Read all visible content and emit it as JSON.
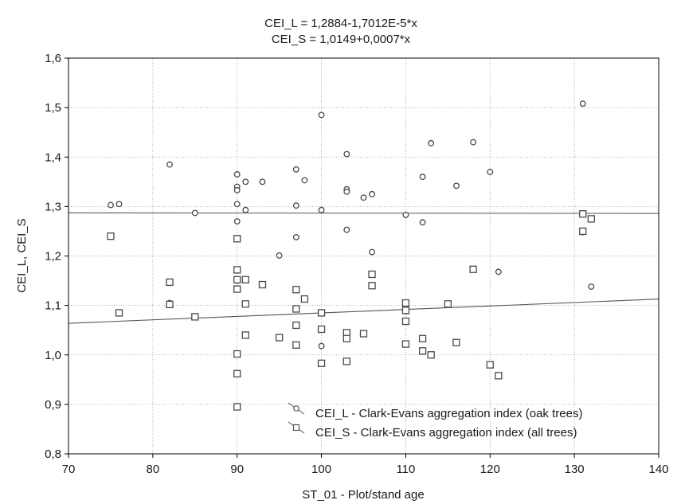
{
  "chart_data": {
    "type": "scatter",
    "title_lines": [
      "CEI_L = 1,2884-1,7012E-5*x",
      "CEI_S = 1,0149+0,0007*x"
    ],
    "xlabel": "ST_01 - Plot/stand age",
    "ylabel": "CEI_L, CEI_S",
    "xlim": [
      70,
      140
    ],
    "ylim": [
      0.8,
      1.6
    ],
    "x_ticks": [
      70,
      80,
      90,
      100,
      110,
      120,
      130,
      140
    ],
    "x_tick_labels": [
      "70",
      "80",
      "90",
      "100",
      "110",
      "120",
      "130",
      "140"
    ],
    "y_ticks": [
      0.8,
      0.9,
      1.0,
      1.1,
      1.2,
      1.3,
      1.4,
      1.5,
      1.6
    ],
    "y_tick_labels": [
      "0,8",
      "0,9",
      "1,0",
      "1,1",
      "1,2",
      "1,3",
      "1,4",
      "1,5",
      "1,6"
    ],
    "grid": true,
    "legend_position": "bottom-center",
    "series": [
      {
        "name": "CEI_L - Clark-Evans aggregation index (oak trees)",
        "marker": "circle",
        "fit": {
          "intercept": 1.2884,
          "slope": -1.7012e-05
        },
        "points": [
          [
            75,
            1.303
          ],
          [
            76,
            1.305
          ],
          [
            82,
            1.385
          ],
          [
            82,
            1.105
          ],
          [
            85,
            1.287
          ],
          [
            90,
            1.365
          ],
          [
            90,
            1.34
          ],
          [
            90,
            1.333
          ],
          [
            90,
            1.305
          ],
          [
            90,
            1.27
          ],
          [
            90,
            1.15
          ],
          [
            91,
            1.35
          ],
          [
            91,
            1.293
          ],
          [
            93,
            1.35
          ],
          [
            95,
            1.201
          ],
          [
            97,
            1.375
          ],
          [
            97,
            1.302
          ],
          [
            97,
            1.238
          ],
          [
            98,
            1.353
          ],
          [
            100,
            1.485
          ],
          [
            100,
            1.293
          ],
          [
            100,
            1.018
          ],
          [
            103,
            1.406
          ],
          [
            103,
            1.335
          ],
          [
            103,
            1.33
          ],
          [
            103,
            1.253
          ],
          [
            105,
            1.318
          ],
          [
            106,
            1.325
          ],
          [
            106,
            1.208
          ],
          [
            110,
            1.283
          ],
          [
            110,
            1.088
          ],
          [
            112,
            1.36
          ],
          [
            112,
            1.268
          ],
          [
            113,
            1.428
          ],
          [
            116,
            1.342
          ],
          [
            118,
            1.43
          ],
          [
            120,
            1.37
          ],
          [
            121,
            1.168
          ],
          [
            131,
            1.508
          ],
          [
            131,
            1.248
          ],
          [
            132,
            1.138
          ]
        ]
      },
      {
        "name": "CEI_S - Clark-Evans aggregation index (all trees)",
        "marker": "square",
        "fit": {
          "intercept": 1.0149,
          "slope": 0.0007
        },
        "points": [
          [
            75,
            1.24
          ],
          [
            76,
            1.085
          ],
          [
            82,
            1.147
          ],
          [
            82,
            1.102
          ],
          [
            85,
            1.077
          ],
          [
            90,
            1.235
          ],
          [
            90,
            1.172
          ],
          [
            90,
            1.152
          ],
          [
            90,
            1.133
          ],
          [
            90,
            1.002
          ],
          [
            90,
            0.962
          ],
          [
            90,
            0.895
          ],
          [
            91,
            1.152
          ],
          [
            91,
            1.103
          ],
          [
            91,
            1.04
          ],
          [
            93,
            1.142
          ],
          [
            95,
            1.035
          ],
          [
            97,
            1.132
          ],
          [
            97,
            1.093
          ],
          [
            97,
            1.06
          ],
          [
            97,
            1.02
          ],
          [
            98,
            1.113
          ],
          [
            100,
            1.085
          ],
          [
            100,
            1.052
          ],
          [
            100,
            0.983
          ],
          [
            103,
            1.045
          ],
          [
            103,
            1.033
          ],
          [
            103,
            0.987
          ],
          [
            105,
            1.043
          ],
          [
            106,
            1.163
          ],
          [
            106,
            1.14
          ],
          [
            110,
            1.105
          ],
          [
            110,
            1.09
          ],
          [
            110,
            1.068
          ],
          [
            110,
            1.022
          ],
          [
            112,
            1.033
          ],
          [
            112,
            1.008
          ],
          [
            113,
            1.0
          ],
          [
            115,
            1.103
          ],
          [
            116,
            1.025
          ],
          [
            118,
            1.173
          ],
          [
            120,
            0.98
          ],
          [
            121,
            0.958
          ],
          [
            131,
            1.285
          ],
          [
            131,
            1.25
          ],
          [
            132,
            1.275
          ]
        ]
      }
    ]
  }
}
